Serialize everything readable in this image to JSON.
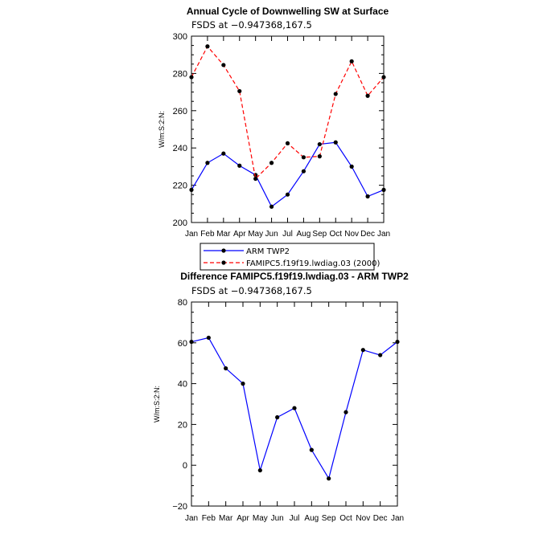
{
  "chart_data": [
    {
      "type": "line",
      "title": "Annual Cycle of Downwelling SW at Surface",
      "subtitle": "FSDS at −0.947368,167.5",
      "ylabel": "W/m:S:2:N:",
      "ylim": [
        200,
        300
      ],
      "yticks": [
        200,
        220,
        240,
        260,
        280,
        300
      ],
      "categories": [
        "Jan",
        "Feb",
        "Mar",
        "Apr",
        "May",
        "Jun",
        "Jul",
        "Aug",
        "Sep",
        "Oct",
        "Nov",
        "Dec",
        "Jan"
      ],
      "legend_position": "bottom",
      "series": [
        {
          "name": "ARM TWP2",
          "color": "#0000ff",
          "dash": "solid",
          "values": [
            217.5,
            232,
            237,
            230.5,
            225.5,
            208.5,
            215,
            227.5,
            242,
            243,
            230,
            214,
            217.5
          ]
        },
        {
          "name": "FAMIPC5.f19f19.lwdiag.03 (2000)",
          "color": "#ff0000",
          "dash": "dashed",
          "values": [
            278,
            294.5,
            284.5,
            270.5,
            223.5,
            232,
            242.5,
            235,
            235.5,
            269,
            286.5,
            268,
            278
          ]
        }
      ]
    },
    {
      "type": "line",
      "title": "Difference FAMIPC5.f19f19.lwdiag.03 - ARM TWP2",
      "subtitle": "FSDS at −0.947368,167.5",
      "ylabel": "W/m:S:2:N:",
      "ylim": [
        -20,
        80
      ],
      "yticks": [
        -20,
        0,
        20,
        40,
        60,
        80
      ],
      "categories": [
        "Jan",
        "Feb",
        "Mar",
        "Apr",
        "May",
        "Jun",
        "Jul",
        "Aug",
        "Sep",
        "Oct",
        "Nov",
        "Dec",
        "Jan"
      ],
      "series": [
        {
          "color": "#0000ff",
          "dash": "solid",
          "values": [
            60.5,
            62.5,
            47.5,
            40,
            -2.5,
            23.5,
            28,
            7.5,
            -6.5,
            26,
            56.5,
            54,
            60.5
          ]
        }
      ]
    }
  ]
}
